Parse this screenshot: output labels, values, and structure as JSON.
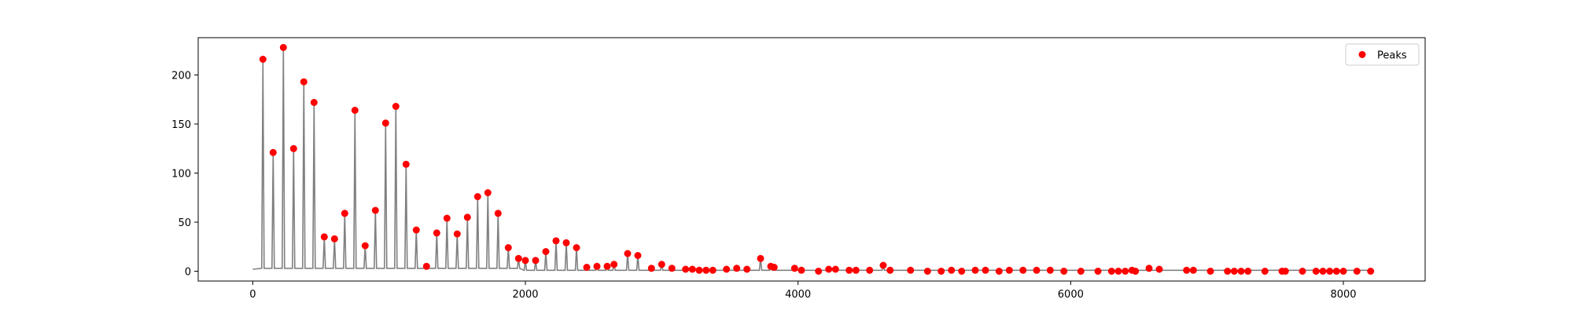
{
  "chart_data": {
    "type": "scatter",
    "title": "",
    "xlabel": "",
    "ylabel": "",
    "xlim": [
      -400,
      8600
    ],
    "ylim": [
      -10,
      238
    ],
    "xticks": [
      0,
      2000,
      4000,
      6000,
      8000
    ],
    "yticks": [
      0,
      50,
      100,
      150,
      200
    ],
    "grid": false,
    "legend": {
      "placement": "top-right",
      "entries": [
        "Peaks"
      ]
    },
    "colors": {
      "signal": "#808080",
      "peaks": "#ff0000",
      "axes": "#000000",
      "legend_border": "#cccccc"
    },
    "series": [
      {
        "name": "Peaks",
        "x": [
          75,
          150,
          225,
          300,
          375,
          450,
          525,
          600,
          675,
          750,
          825,
          900,
          975,
          1050,
          1125,
          1200,
          1275,
          1350,
          1425,
          1500,
          1575,
          1650,
          1725,
          1800,
          1875,
          1950,
          2000,
          2075,
          2150,
          2225,
          2300,
          2375,
          2450,
          2525,
          2600,
          2650,
          2750,
          2825,
          2925,
          3000,
          3075,
          3175,
          3225,
          3275,
          3325,
          3375,
          3475,
          3550,
          3625,
          3725,
          3800,
          3825,
          3975,
          4025,
          4150,
          4225,
          4275,
          4375,
          4425,
          4525,
          4625,
          4675,
          4825,
          4950,
          5050,
          5125,
          5200,
          5300,
          5375,
          5475,
          5550,
          5650,
          5750,
          5850,
          5950,
          6075,
          6200,
          6300,
          6350,
          6400,
          6450,
          6475,
          6575,
          6650,
          6850,
          6900,
          7025,
          7150,
          7200,
          7250,
          7300,
          7425,
          7550,
          7575,
          7700,
          7800,
          7850,
          7900,
          7950,
          8000,
          8100,
          8200
        ],
        "values": [
          216,
          121,
          228,
          125,
          193,
          172,
          35,
          33,
          59,
          164,
          26,
          62,
          151,
          168,
          109,
          42,
          5,
          39,
          54,
          38,
          55,
          76,
          80,
          59,
          24,
          13,
          11,
          11,
          20,
          31,
          29,
          24,
          4,
          5,
          5,
          7,
          18,
          16,
          3,
          7,
          3,
          2,
          2,
          1,
          1,
          1,
          2,
          3,
          2,
          13,
          5,
          4,
          3,
          1,
          0,
          2,
          2,
          1,
          1,
          1,
          6,
          1,
          1,
          0,
          0,
          1,
          0,
          1,
          1,
          0,
          1,
          1,
          1,
          1,
          0,
          0,
          0,
          0,
          0,
          0,
          1,
          0,
          3,
          2,
          1,
          1,
          0,
          0,
          0,
          0,
          0,
          0,
          0,
          0,
          0,
          0,
          0,
          0,
          0,
          0,
          0,
          0
        ]
      }
    ]
  }
}
